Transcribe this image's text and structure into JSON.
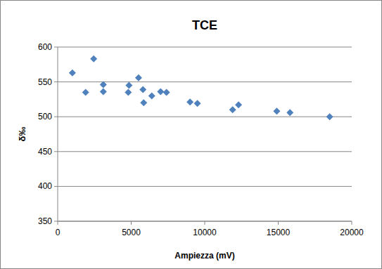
{
  "chart_data": {
    "type": "scatter",
    "title": "TCE",
    "x_label": "Ampiezza (mV)",
    "y_label": "δ‰",
    "x": [
      1000,
      1900,
      2450,
      3100,
      3100,
      4800,
      4850,
      5500,
      5800,
      5850,
      6400,
      7000,
      7400,
      9000,
      9500,
      11900,
      12300,
      14900,
      15800,
      18500
    ],
    "values": [
      563,
      535,
      583,
      546,
      536,
      535,
      545,
      556,
      539,
      520,
      530,
      536,
      535,
      521,
      519,
      510,
      517,
      508,
      506,
      500
    ],
    "color": "#4f81bd",
    "marker": "diamond",
    "xlim": [
      0,
      20000
    ],
    "xticks": [
      0,
      5000,
      10000,
      15000,
      20000
    ],
    "ylim": [
      350,
      600
    ],
    "yticks": [
      350,
      400,
      450,
      500,
      550,
      600
    ],
    "grid": true
  }
}
